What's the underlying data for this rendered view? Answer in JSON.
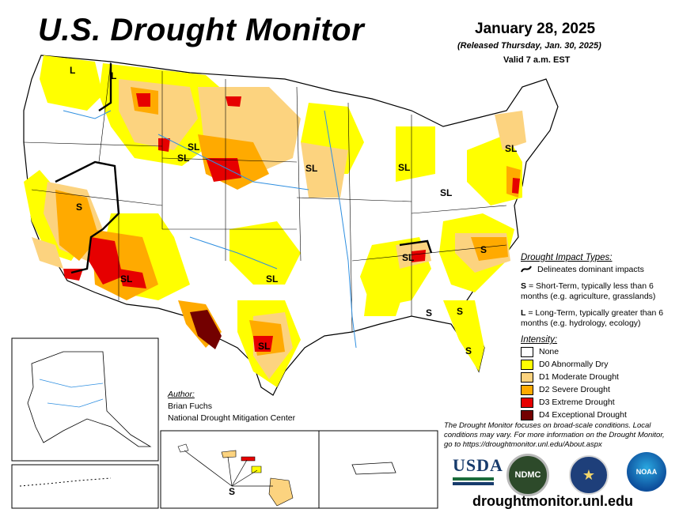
{
  "header": {
    "title": "U.S. Drought Monitor",
    "date": "January 28, 2025",
    "released": "(Released Thursday, Jan. 30, 2025)",
    "valid": "Valid 7 a.m. EST"
  },
  "impact_types": {
    "heading": "Drought Impact Types:",
    "line_desc": "Delineates dominant impacts",
    "short_term_key": "S",
    "short_term_desc": "= Short-Term, typically less than 6 months (e.g. agriculture, grasslands)",
    "long_term_key": "L",
    "long_term_desc": "= Long-Term, typically greater than 6 months (e.g. hydrology, ecology)"
  },
  "intensity": {
    "heading": "Intensity:",
    "levels": [
      {
        "label": "None",
        "color": "#ffffff"
      },
      {
        "label": "D0 Abnormally Dry",
        "color": "#ffff00"
      },
      {
        "label": "D1 Moderate Drought",
        "color": "#fcd37f"
      },
      {
        "label": "D2 Severe Drought",
        "color": "#ffaa00"
      },
      {
        "label": "D3 Extreme Drought",
        "color": "#e60000"
      },
      {
        "label": "D4 Exceptional Drought",
        "color": "#730000"
      }
    ]
  },
  "author": {
    "heading": "Author:",
    "name": "Brian Fuchs",
    "org": "National Drought Mitigation Center"
  },
  "note": "The Drought Monitor focuses on broad-scale conditions. Local conditions may vary. For more information on the Drought Monitor, go to https://droughtmonitor.unl.edu/About.aspx",
  "url": "droughtmonitor.unl.edu",
  "logos": {
    "usda": "USDA",
    "ndmc": "NDMC",
    "noaa": "NOAA"
  },
  "map_labels": [
    "L",
    "L",
    "SL",
    "SL",
    "SL",
    "SL",
    "SL",
    "SL",
    "S",
    "SL",
    "SL",
    "SL",
    "SL",
    "S",
    "S",
    "S",
    "S",
    "SL",
    "S"
  ]
}
